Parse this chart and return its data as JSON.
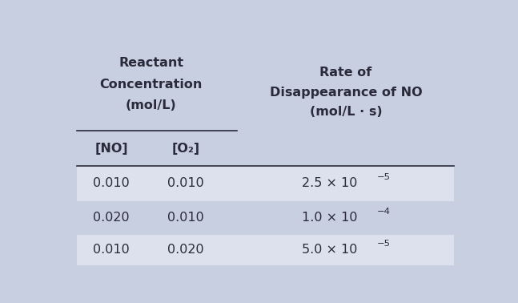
{
  "background_color": "#c8cfe0",
  "table_bg_lighter": "#dde1ee",
  "header_bg_color": "#c8cfe0",
  "text_color": "#2a2a3a",
  "figsize": [
    6.47,
    3.78
  ],
  "dpi": 100,
  "col1_header_line1": "Reactant",
  "col1_header_line2": "Concentration",
  "col1_header_line3": "(mol/L)",
  "col2_header_line1": "Rate of",
  "col2_header_line2": "Disappearance of NO",
  "col2_header_line3": "(mol/L · s)",
  "subheader_col1": "[NO]",
  "subheader_col2": "[O₂]",
  "rate_bases": [
    "2.5 × 10",
    "1.0 × 10",
    "5.0 × 10"
  ],
  "rate_superscripts": [
    "−5",
    "−4",
    "−5"
  ],
  "no_vals": [
    "0.010",
    "0.020",
    "0.010"
  ],
  "o2_vals": [
    "0.010",
    "0.010",
    "0.020"
  ]
}
